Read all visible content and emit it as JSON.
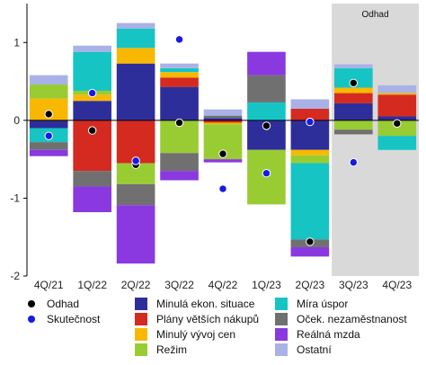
{
  "chart_data": {
    "type": "bar",
    "stacked": true,
    "categories": [
      "4Q/21",
      "1Q/22",
      "2Q/22",
      "3Q/22",
      "4Q/22",
      "1Q/23",
      "2Q/23",
      "3Q/23",
      "4Q/23"
    ],
    "ylim": [
      -2,
      1.5
    ],
    "yticks": [
      -2,
      -1,
      0,
      1
    ],
    "shaded_region": {
      "categories": [
        "3Q/23",
        "4Q/23"
      ],
      "label": "Odhad",
      "color": "#d9d9d9"
    },
    "series": [
      {
        "name": "Minulá ekon. situace",
        "color": "#2e2e9a",
        "values": [
          -0.1,
          0.25,
          0.73,
          0.43,
          0.03,
          -0.38,
          -0.38,
          0.22,
          0.05
        ]
      },
      {
        "name": "Plány větších nákupů",
        "color": "#d42a20",
        "values": [
          0.0,
          -0.65,
          -0.55,
          0.12,
          -0.03,
          0.0,
          0.15,
          0.13,
          0.28
        ]
      },
      {
        "name": "Minulý vývoj cen",
        "color": "#f9b800",
        "values": [
          0.28,
          0.08,
          0.2,
          0.07,
          -0.02,
          0.0,
          -0.07,
          0.07,
          0.02
        ]
      },
      {
        "name": "Režim",
        "color": "#99cc33",
        "values": [
          0.18,
          0.05,
          -0.27,
          -0.42,
          -0.45,
          -0.7,
          -0.1,
          -0.12,
          -0.2
        ]
      },
      {
        "name": "Míra úspor",
        "color": "#16c4c4",
        "values": [
          -0.18,
          0.5,
          0.25,
          0.05,
          0.0,
          0.23,
          -0.98,
          0.25,
          -0.18
        ]
      },
      {
        "name": "Oček. nezaměstnanost",
        "color": "#707070",
        "values": [
          -0.1,
          -0.2,
          -0.27,
          -0.23,
          0.03,
          0.35,
          -0.1,
          -0.06,
          0.0
        ]
      },
      {
        "name": "Reálná mzda",
        "color": "#8a38e0",
        "values": [
          -0.08,
          -0.33,
          -0.75,
          -0.12,
          -0.04,
          0.3,
          -0.12,
          0.0,
          0.0
        ]
      },
      {
        "name": "Ostatní",
        "color": "#a9b2e6",
        "values": [
          0.12,
          0.08,
          0.07,
          0.06,
          0.08,
          0.0,
          0.12,
          0.05,
          0.1
        ]
      }
    ],
    "points": [
      {
        "name": "Odhad",
        "color": "#000000",
        "values": [
          0.08,
          -0.13,
          -0.57,
          -0.03,
          -0.43,
          -0.07,
          -1.56,
          0.48,
          -0.04
        ]
      },
      {
        "name": "Skutečnost",
        "color": "#1818e8",
        "values": [
          -0.2,
          0.35,
          -0.52,
          1.04,
          -0.88,
          -0.68,
          -0.02,
          -0.54,
          null
        ]
      }
    ]
  }
}
